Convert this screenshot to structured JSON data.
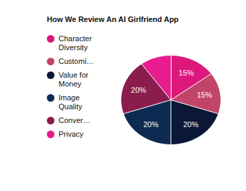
{
  "chart_data": {
    "type": "pie",
    "title": "How We Review An AI Girlfriend App",
    "categories": [
      "Character Diversity",
      "Customi…",
      "Value for Money",
      "Image Quality",
      "Conver…",
      "Privacy"
    ],
    "values": [
      15,
      15,
      20,
      20,
      20,
      10
    ],
    "value_labels": [
      "15%",
      "15%",
      "20%",
      "20%",
      "20%",
      null
    ],
    "colors": [
      "#dc187c",
      "#c24569",
      "#0b1736",
      "#0d2a52",
      "#8b1d4e",
      "#e81c8c"
    ],
    "data_labels": true,
    "legend": "left"
  }
}
